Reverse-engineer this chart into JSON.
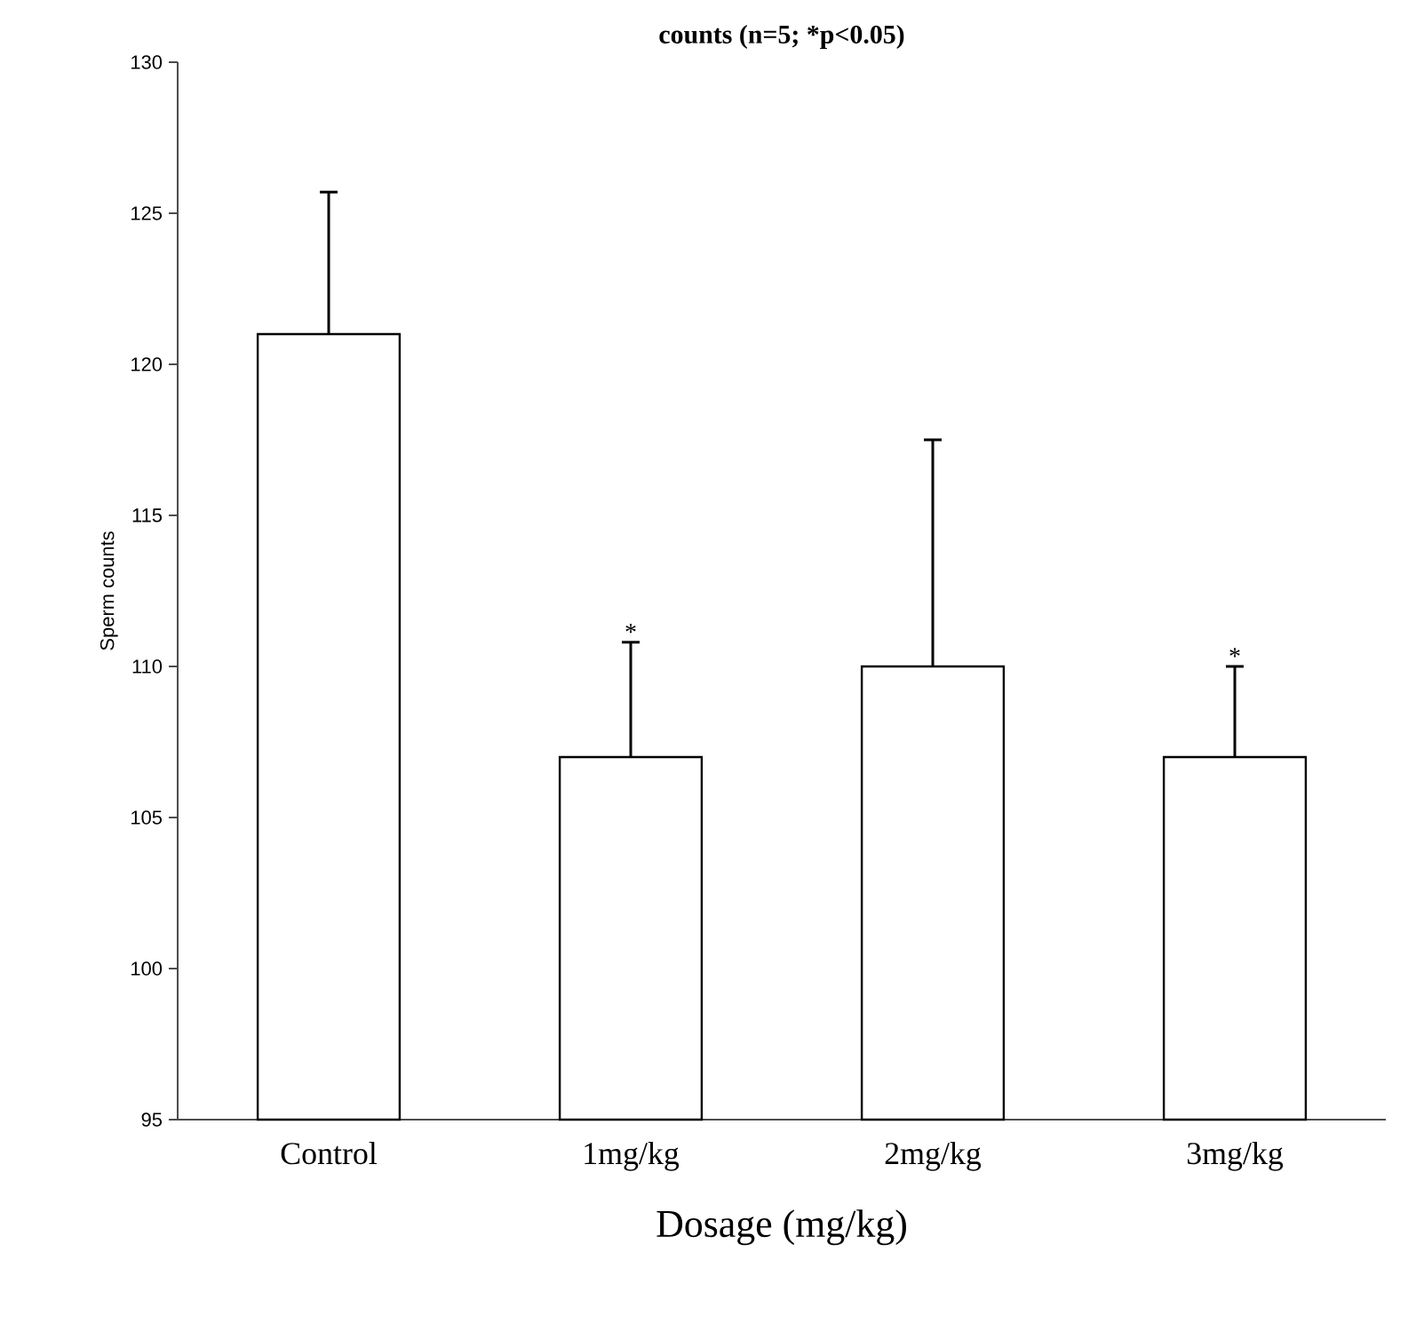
{
  "chart_data": {
    "type": "bar",
    "title": "counts (n=5; *p<0.05)",
    "xlabel": "Dosage (mg/kg)",
    "ylabel": "Sperm counts",
    "categories": [
      "Control",
      "1mg/kg",
      "2mg/kg",
      "3mg/kg"
    ],
    "values": [
      121,
      107,
      110,
      107
    ],
    "errors": [
      [
        121,
        125.7
      ],
      [
        107,
        110.8
      ],
      [
        110,
        117.5
      ],
      [
        107,
        110.0
      ]
    ],
    "color": "#000000",
    "ylim": [
      95,
      130
    ],
    "yticks": [
      95,
      100,
      105,
      110,
      115,
      120,
      125,
      130
    ],
    "annotations": [
      {
        "text": "*",
        "x": "1mg/kg",
        "y": 110.8
      },
      {
        "text": "*",
        "x": "3mg/kg",
        "y": 110.0
      }
    ]
  }
}
